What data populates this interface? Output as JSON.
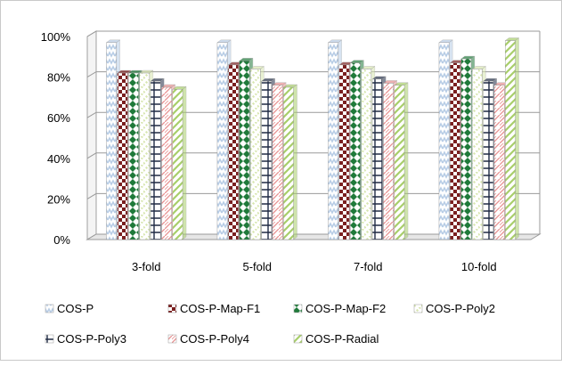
{
  "chart_data": {
    "type": "bar",
    "categories": [
      "3-fold",
      "5-fold",
      "7-fold",
      "10-fold"
    ],
    "ylim": [
      0,
      100
    ],
    "yticks": [
      "0%",
      "20%",
      "40%",
      "60%",
      "80%",
      "100%"
    ],
    "grid": true,
    "legend_position": "bottom",
    "series": [
      {
        "name": "COS-P",
        "values": [
          97,
          97,
          97,
          97
        ],
        "color": "#b8cde6",
        "pattern": "zigzag"
      },
      {
        "name": "COS-P-Map-F1",
        "values": [
          82,
          86,
          86,
          87
        ],
        "color": "#7a1f1f",
        "pattern": "checker"
      },
      {
        "name": "COS-P-Map-F2",
        "values": [
          82,
          88,
          87,
          89
        ],
        "color": "#1f7a3a",
        "pattern": "diamond"
      },
      {
        "name": "COS-P-Poly2",
        "values": [
          82,
          84,
          84,
          84
        ],
        "color": "#d8e6b0",
        "pattern": "dash"
      },
      {
        "name": "COS-P-Poly3",
        "values": [
          78,
          78,
          79,
          78
        ],
        "color": "#1f2a44",
        "pattern": "grid"
      },
      {
        "name": "COS-P-Poly4",
        "values": [
          75,
          76,
          77,
          76
        ],
        "color": "#e89090",
        "pattern": "hatch"
      },
      {
        "name": "COS-P-Radial",
        "values": [
          74,
          75,
          76,
          98
        ],
        "color": "#a8cf6a",
        "pattern": "diag"
      }
    ]
  }
}
